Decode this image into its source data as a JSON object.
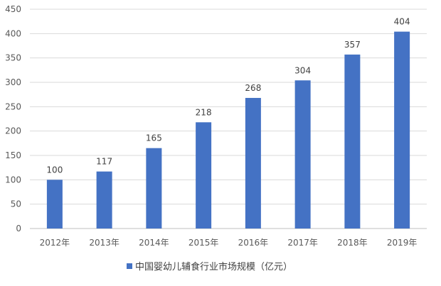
{
  "chart_data": {
    "type": "bar",
    "categories": [
      "2012年",
      "2013年",
      "2014年",
      "2015年",
      "2016年",
      "2017年",
      "2018年",
      "2019年"
    ],
    "series": [
      {
        "name": "中国婴幼儿辅食行业市场规模（亿元）",
        "values": [
          100,
          117,
          165,
          218,
          268,
          304,
          357,
          404
        ],
        "color": "#4472C4"
      }
    ],
    "title": "",
    "xlabel": "",
    "ylabel": "",
    "ylim": [
      0,
      450
    ],
    "yticks": [
      0,
      50,
      100,
      150,
      200,
      250,
      300,
      350,
      400,
      450
    ],
    "grid": true,
    "legend_position": "bottom",
    "data_labels": true,
    "gridline_color": "#d9d9d9",
    "axis_color": "#bfbfbf"
  }
}
